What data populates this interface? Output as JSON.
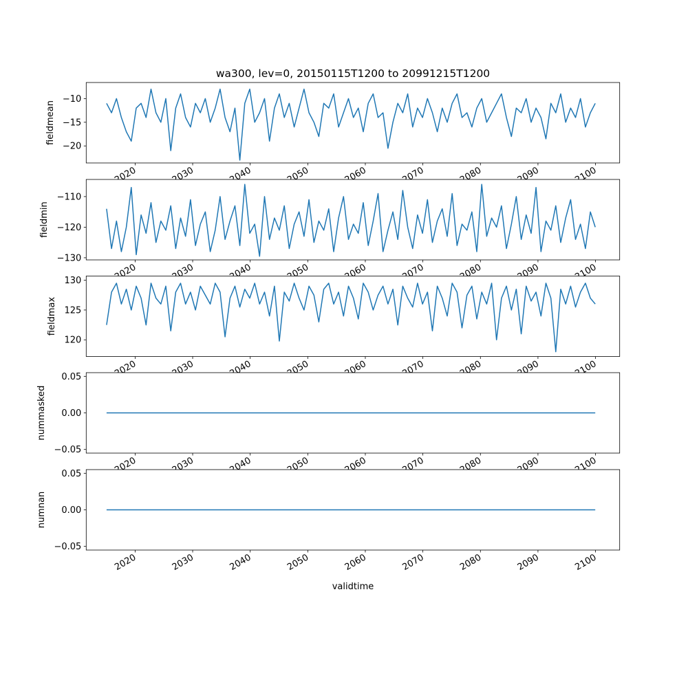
{
  "chart_data": [
    {
      "type": "line",
      "title": "wa300, lev=0, 20150115T1200 to 20991215T1200",
      "ylabel": "fieldmean",
      "xlabel": "",
      "xlim": [
        2011.5,
        2104.2
      ],
      "ylim": [
        -23.6,
        -6.6
      ],
      "x_range": [
        2015.04,
        2099.96
      ],
      "yticks": [
        -20,
        -15,
        -10
      ],
      "ytick_labels": [
        "−20",
        "−15",
        "−10"
      ],
      "xticks": [
        2020,
        2030,
        2040,
        2050,
        2060,
        2070,
        2080,
        2090,
        2100
      ],
      "xtick_labels": [
        "2020",
        "2030",
        "2040",
        "2050",
        "2060",
        "2070",
        "2080",
        "2090",
        "2100"
      ],
      "color": "#1f77b4",
      "values": [
        -11,
        -13,
        -10,
        -14,
        -17,
        -19,
        -12,
        -11,
        -14,
        -8,
        -13,
        -15,
        -10,
        -21,
        -12,
        -9,
        -14,
        -16,
        -11,
        -13,
        -10,
        -15,
        -12,
        -8,
        -14,
        -17,
        -12,
        -23,
        -11,
        -8,
        -15,
        -13,
        -10,
        -19,
        -12,
        -9,
        -14,
        -11,
        -16,
        -12,
        -8,
        -13,
        -15,
        -18,
        -11,
        -12,
        -9,
        -16,
        -13,
        -10,
        -14,
        -12,
        -17,
        -11,
        -9,
        -14,
        -13,
        -20.5,
        -15,
        -11,
        -13,
        -9,
        -16,
        -12,
        -14,
        -10,
        -13,
        -17,
        -12,
        -15,
        -11,
        -9,
        -14,
        -13,
        -16,
        -12,
        -10,
        -15,
        -13,
        -11,
        -9,
        -14,
        -18,
        -12,
        -13,
        -10,
        -15,
        -12,
        -14,
        -18.5,
        -11,
        -13,
        -9,
        -15,
        -12,
        -14,
        -10,
        -16,
        -13,
        -11
      ]
    },
    {
      "type": "line",
      "ylabel": "fieldmin",
      "xlabel": "",
      "xlim": [
        2011.5,
        2104.2
      ],
      "ylim": [
        -130.7,
        -104.4
      ],
      "x_range": [
        2015.04,
        2099.96
      ],
      "yticks": [
        -130,
        -120,
        -110
      ],
      "ytick_labels": [
        "−130",
        "−120",
        "−110"
      ],
      "xticks": [
        2020,
        2030,
        2040,
        2050,
        2060,
        2070,
        2080,
        2090,
        2100
      ],
      "xtick_labels": [
        "2020",
        "2030",
        "2040",
        "2050",
        "2060",
        "2070",
        "2080",
        "2090",
        "2100"
      ],
      "color": "#1f77b4",
      "values": [
        -114,
        -127,
        -118,
        -128,
        -120,
        -107,
        -129,
        -116,
        -122,
        -112,
        -125,
        -118,
        -121,
        -113,
        -127,
        -117,
        -123,
        -111,
        -126,
        -119,
        -115,
        -128,
        -121,
        -110,
        -124,
        -118,
        -113,
        -126,
        -106,
        -122,
        -119,
        -129.5,
        -110,
        -124,
        -117,
        -121,
        -113,
        -127,
        -119,
        -115,
        -123,
        -111,
        -125,
        -118,
        -121,
        -114,
        -128,
        -117,
        -110,
        -124,
        -119,
        -122,
        -112,
        -126,
        -118,
        -109,
        -128,
        -121,
        -115,
        -124,
        -108,
        -120,
        -127,
        -116,
        -122,
        -111,
        -125,
        -118,
        -114,
        -123,
        -109,
        -126,
        -119,
        -121,
        -115,
        -128,
        -106,
        -123,
        -117,
        -120,
        -113,
        -127,
        -119,
        -110,
        -124,
        -116,
        -122,
        -107,
        -128,
        -118,
        -121,
        -113,
        -125,
        -117,
        -111,
        -124,
        -119,
        -127,
        -115,
        -120
      ]
    },
    {
      "type": "line",
      "ylabel": "fieldmax",
      "xlabel": "",
      "xlim": [
        2011.5,
        2104.2
      ],
      "ylim": [
        117.2,
        130.7
      ],
      "x_range": [
        2015.04,
        2099.96
      ],
      "yticks": [
        120,
        125,
        130
      ],
      "ytick_labels": [
        "120",
        "125",
        "130"
      ],
      "xticks": [
        2020,
        2030,
        2040,
        2050,
        2060,
        2070,
        2080,
        2090,
        2100
      ],
      "xtick_labels": [
        "2020",
        "2030",
        "2040",
        "2050",
        "2060",
        "2070",
        "2080",
        "2090",
        "2100"
      ],
      "color": "#1f77b4",
      "values": [
        122.5,
        128,
        129.5,
        126,
        128.5,
        125,
        129,
        127,
        122.5,
        129.5,
        127,
        126,
        129,
        121.5,
        128,
        129.5,
        126,
        128,
        125,
        129,
        127.5,
        126,
        129.5,
        128,
        120.5,
        127,
        129,
        125.5,
        128.5,
        127,
        129.5,
        126,
        128,
        124,
        129,
        119.8,
        128,
        126.5,
        129.5,
        127,
        125,
        129,
        127.5,
        123,
        128.5,
        129.5,
        126,
        128,
        124,
        129,
        127,
        123.5,
        129.5,
        128,
        125,
        127.5,
        129,
        126,
        128.5,
        122.5,
        129,
        127,
        125.5,
        129.5,
        126,
        128,
        121.5,
        129,
        127,
        124,
        129.5,
        128,
        122,
        127.5,
        129,
        123.5,
        128,
        126,
        129.5,
        120,
        127,
        129,
        125,
        128.5,
        121,
        129,
        126.5,
        128,
        124,
        129.5,
        127,
        118,
        128.5,
        126,
        129,
        125.5,
        128,
        129.5,
        127,
        126
      ]
    },
    {
      "type": "line",
      "ylabel": "nummasked",
      "xlabel": "",
      "xlim": [
        2011.5,
        2104.2
      ],
      "ylim": [
        -0.055,
        0.055
      ],
      "x_range": [
        2015.04,
        2099.96
      ],
      "yticks": [
        -0.05,
        0.0,
        0.05
      ],
      "ytick_labels": [
        "−0.05",
        "0.00",
        "0.05"
      ],
      "xticks": [
        2020,
        2030,
        2040,
        2050,
        2060,
        2070,
        2080,
        2090,
        2100
      ],
      "xtick_labels": [
        "2020",
        "2030",
        "2040",
        "2050",
        "2060",
        "2070",
        "2080",
        "2090",
        "2100"
      ],
      "color": "#1f77b4",
      "values": [
        0,
        0
      ]
    },
    {
      "type": "line",
      "ylabel": "numnan",
      "xlabel": "validtime",
      "xlim": [
        2011.5,
        2104.2
      ],
      "ylim": [
        -0.055,
        0.055
      ],
      "x_range": [
        2015.04,
        2099.96
      ],
      "yticks": [
        -0.05,
        0.0,
        0.05
      ],
      "ytick_labels": [
        "−0.05",
        "0.00",
        "0.05"
      ],
      "xticks": [
        2020,
        2030,
        2040,
        2050,
        2060,
        2070,
        2080,
        2090,
        2100
      ],
      "xtick_labels": [
        "2020",
        "2030",
        "2040",
        "2050",
        "2060",
        "2070",
        "2080",
        "2090",
        "2100"
      ],
      "color": "#1f77b4",
      "values": [
        0,
        0
      ]
    }
  ]
}
